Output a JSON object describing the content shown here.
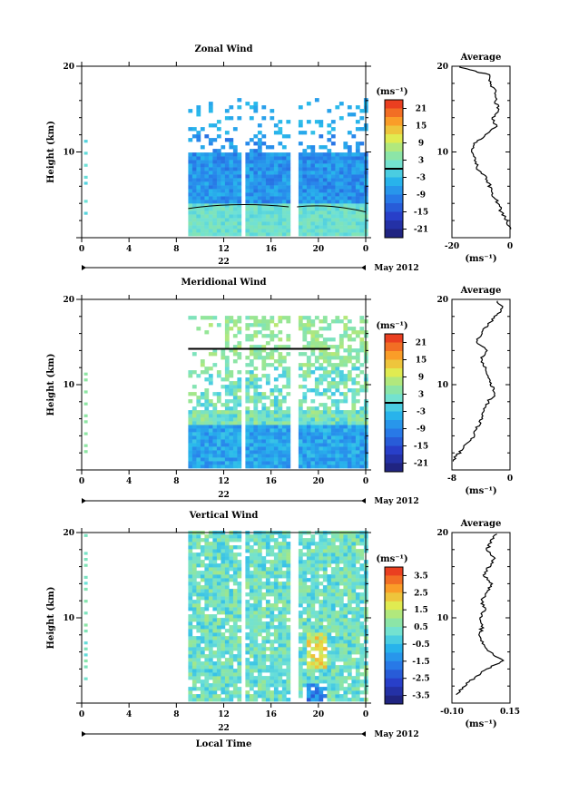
{
  "chart_data": [
    {
      "type": "heatmap",
      "title": "Zonal Wind",
      "ylabel": "Height (km)",
      "ylim": [
        0,
        20
      ],
      "y_ticks": [
        "10",
        "20"
      ],
      "x_ticks": [
        "0",
        "4",
        "8",
        "12",
        "16",
        "20",
        "0"
      ],
      "xlim": [
        0,
        24
      ],
      "date_label": "22",
      "month_label": "May 2012",
      "colorbar": {
        "unit": "(ms⁻¹)",
        "ticks": [
          "21",
          "15",
          "9",
          "3",
          "-3",
          "-9",
          "-15",
          "-21"
        ],
        "range": [
          -24,
          24
        ],
        "zero_line": 0
      },
      "profile": {
        "title": "Average",
        "xlabel": "(ms⁻¹)",
        "xlim": [
          -20,
          0
        ],
        "x_ticks": [
          "-20",
          "0"
        ],
        "y_ticks": [
          "10",
          "20"
        ],
        "heights": [
          1,
          2,
          3,
          4,
          5,
          6,
          7,
          8,
          9,
          10,
          11,
          12,
          13,
          14,
          15,
          16,
          17,
          18,
          19,
          19.5,
          20
        ],
        "values": [
          0,
          -1,
          -3,
          -4,
          -6,
          -7,
          -8,
          -11,
          -12,
          -13,
          -12,
          -8,
          -5,
          -6,
          -4,
          -5,
          -5,
          -7,
          -7,
          -13,
          -18
        ]
      }
    },
    {
      "type": "heatmap",
      "title": "Meridional Wind",
      "ylabel": "Height (km)",
      "ylim": [
        0,
        20
      ],
      "y_ticks": [
        "10",
        "20"
      ],
      "x_ticks": [
        "0",
        "4",
        "8",
        "12",
        "16",
        "20",
        "0"
      ],
      "xlim": [
        0,
        24
      ],
      "date_label": "22",
      "month_label": "May 2012",
      "colorbar": {
        "unit": "(ms⁻¹)",
        "ticks": [
          "21",
          "15",
          "9",
          "3",
          "-3",
          "-9",
          "-15",
          "-21"
        ],
        "range": [
          -24,
          24
        ],
        "zero_line": 0
      },
      "profile": {
        "title": "Average",
        "xlabel": "(ms⁻¹)",
        "xlim": [
          -8,
          0
        ],
        "x_ticks": [
          "-8",
          "0"
        ],
        "y_ticks": [
          "10",
          "20"
        ],
        "heights": [
          1,
          2,
          3,
          4,
          5,
          6,
          7,
          8,
          9,
          10,
          11,
          12,
          13,
          14,
          15,
          16,
          17,
          18,
          19,
          20
        ],
        "values": [
          -8,
          -7,
          -6,
          -5,
          -4.5,
          -4,
          -3.5,
          -3,
          -2,
          -2.5,
          -3,
          -3.5,
          -4,
          -3,
          -4.5,
          -4,
          -3,
          -2,
          -1,
          -2
        ]
      }
    },
    {
      "type": "heatmap",
      "title": "Vertical Wind",
      "ylabel": "Height (km)",
      "xlabel": "Local Time",
      "ylim": [
        0,
        20
      ],
      "y_ticks": [
        "10",
        "20"
      ],
      "x_ticks": [
        "0",
        "4",
        "8",
        "12",
        "16",
        "20",
        "0"
      ],
      "xlim": [
        0,
        24
      ],
      "date_label": "22",
      "month_label": "May 2012",
      "colorbar": {
        "unit": "(ms⁻¹)",
        "ticks": [
          "3.5",
          "2.5",
          "1.5",
          "0.5",
          "-0.5",
          "-1.5",
          "-2.5",
          "-3.5"
        ],
        "range": [
          -4,
          4
        ]
      },
      "profile": {
        "title": "Average",
        "xlabel": "(ms⁻¹)",
        "xlim": [
          -0.1,
          0.15
        ],
        "x_ticks": [
          "-0.10",
          "0.15"
        ],
        "y_ticks": [
          "10",
          "20"
        ],
        "heights": [
          1,
          2,
          3,
          4,
          5,
          6,
          7,
          8,
          9,
          10,
          11,
          12,
          13,
          14,
          15,
          16,
          17,
          18,
          19,
          20
        ],
        "values": [
          -0.08,
          -0.05,
          0.0,
          0.05,
          0.12,
          0.06,
          0.03,
          0.02,
          0.03,
          0.02,
          0.04,
          0.03,
          0.05,
          0.07,
          0.04,
          0.06,
          0.08,
          0.05,
          0.07,
          0.09
        ]
      }
    }
  ]
}
